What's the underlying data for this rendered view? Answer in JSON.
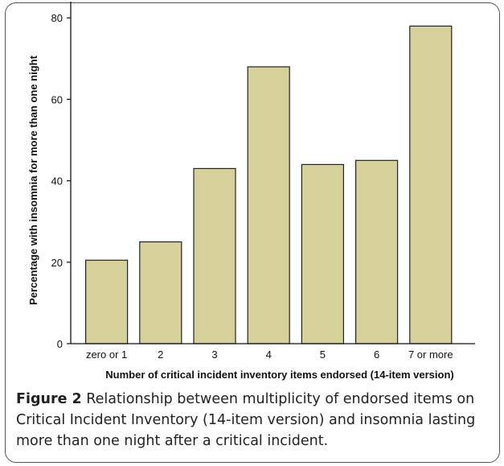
{
  "chart_data": {
    "type": "bar",
    "categories": [
      "zero or 1",
      "2",
      "3",
      "4",
      "5",
      "6",
      "7 or more"
    ],
    "values": [
      20.5,
      25,
      43,
      68,
      44,
      45,
      78
    ],
    "xlabel": "Number of critical incident inventory items endorsed (14-item version)",
    "ylabel": "Percentage with insomnia for more than one night",
    "ylim": [
      0,
      84
    ],
    "yticks": [
      0,
      20,
      40,
      60,
      80
    ],
    "grid": false,
    "bar_color": "#d6d09a",
    "bar_edge_color": "#222222"
  },
  "caption": {
    "label": "Figure 2",
    "text": " Relationship between multiplicity of endorsed items on Critical Incident Inventory (14-item version) and insomnia lasting more than one night after a critical incident."
  }
}
